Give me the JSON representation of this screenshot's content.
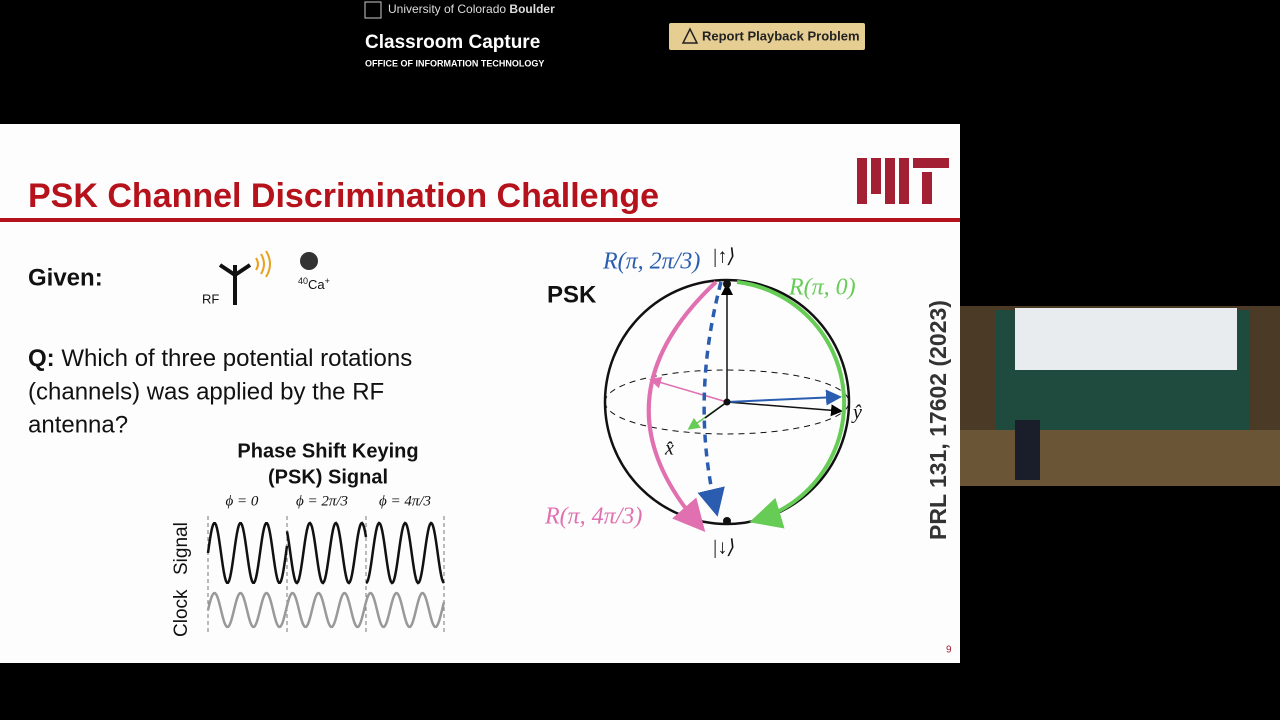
{
  "header": {
    "university": "University of Colorado",
    "campus": "Boulder",
    "title": "Classroom Capture",
    "subtitle": "OFFICE OF INFORMATION TECHNOLOGY",
    "button": "Report Playback Problem"
  },
  "slide": {
    "title": "PSK Channel Discrimination Challenge",
    "given": "Given:",
    "rf": "RF",
    "ion": {
      "mass": "40",
      "element": "Ca",
      "charge": "+"
    },
    "question": {
      "label": "Q:",
      "lines": [
        "Which of three potential rotations",
        "(channels) was applied by the RF",
        "antenna?"
      ]
    },
    "signal_title": [
      "Phase Shift Keying",
      "(PSK) Signal"
    ],
    "phases": [
      "ϕ = 0",
      "ϕ = 2π/3",
      "ϕ = 4π/3"
    ],
    "axis_label": {
      "clock": "Clock",
      "signal": "Signal"
    },
    "psk": "PSK",
    "sphere": {
      "r_2pi3": "R(π, 2π/3)",
      "up": "|↑⟩",
      "r_0": "R(π, 0)",
      "y": "ŷ",
      "x": "x̂",
      "r_4pi3": "R(π, 4π/3)",
      "down": "|↓⟩"
    },
    "reference": "PRL 131, 17602 (2023)",
    "page": "9"
  }
}
